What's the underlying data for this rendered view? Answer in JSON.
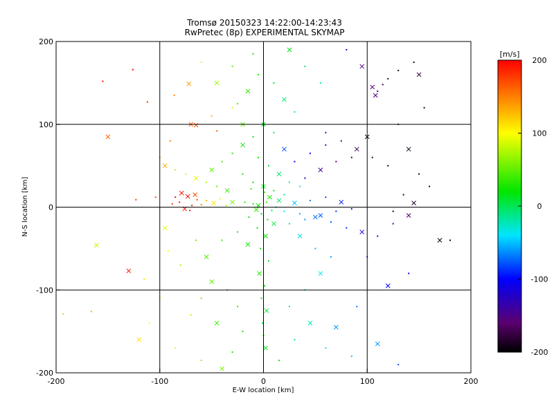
{
  "chart_data": {
    "type": "scatter",
    "title": "Tromsø 20150323 14:22:00-14:23:43",
    "subtitle": "RwPretec (8p) EXPERIMENTAL SKYMAP",
    "xlabel": "E-W location [km]",
    "ylabel": "N-S location [km]",
    "xlim": [
      -200,
      200
    ],
    "ylim": [
      -200,
      200
    ],
    "xticks": [
      -200,
      -100,
      0,
      100,
      200
    ],
    "yticks": [
      -200,
      -100,
      0,
      100,
      200
    ],
    "grid": true,
    "markers": [
      "dot",
      "x"
    ],
    "colorbar": {
      "label": "[m/s]",
      "range": [
        -200,
        200
      ],
      "ticks": [
        200,
        100,
        0,
        -100,
        -200
      ],
      "colormap": "rainbow (black-purple-blue-cyan-green-yellow-red)",
      "placement": "right"
    },
    "points": [
      [
        -73,
        13,
        200
      ],
      [
        -81,
        6,
        195
      ],
      [
        -69,
        2,
        190
      ],
      [
        -76,
        -2,
        185
      ],
      [
        -85,
        12,
        200
      ],
      [
        -64,
        9,
        175
      ],
      [
        -79,
        17,
        190
      ],
      [
        -71,
        -4,
        200
      ],
      [
        -88,
        4,
        185
      ],
      [
        -66,
        15,
        170
      ],
      [
        -60,
        3,
        150
      ],
      [
        -55,
        8,
        130
      ],
      [
        -48,
        5,
        110
      ],
      [
        -42,
        10,
        90
      ],
      [
        -36,
        2,
        70
      ],
      [
        -30,
        6,
        55
      ],
      [
        -155,
        152,
        195
      ],
      [
        -126,
        166,
        200
      ],
      [
        -130,
        -77,
        190
      ],
      [
        -166,
        -126,
        130
      ],
      [
        -193,
        -129,
        120
      ],
      [
        -161,
        -46,
        80
      ],
      [
        -123,
        9,
        180
      ],
      [
        -112,
        127,
        185
      ],
      [
        -72,
        149,
        140
      ],
      [
        -86,
        135,
        150
      ],
      [
        -104,
        12,
        170
      ],
      [
        -150,
        85,
        160
      ],
      [
        -92,
        -53,
        100
      ],
      [
        -115,
        -87,
        110
      ],
      [
        -65,
        99,
        175
      ],
      [
        -45,
        92,
        160
      ],
      [
        3,
        6,
        40
      ],
      [
        -5,
        2,
        20
      ],
      [
        8,
        -4,
        10
      ],
      [
        -2,
        -8,
        15
      ],
      [
        6,
        12,
        30
      ],
      [
        -10,
        4,
        25
      ],
      [
        12,
        0,
        5
      ],
      [
        -7,
        -3,
        35
      ],
      [
        1,
        18,
        45
      ],
      [
        -14,
        -12,
        20
      ],
      [
        15,
        8,
        -5
      ],
      [
        -18,
        6,
        30
      ],
      [
        4,
        -15,
        10
      ],
      [
        10,
        -20,
        5
      ],
      [
        -6,
        -25,
        15
      ],
      [
        -12,
        22,
        35
      ],
      [
        2,
        -35,
        20
      ],
      [
        -3,
        -50,
        15
      ],
      [
        5,
        -65,
        10
      ],
      [
        -4,
        -80,
        25
      ],
      [
        1,
        -95,
        20
      ],
      [
        -2,
        -110,
        15
      ],
      [
        3,
        -125,
        5
      ],
      [
        -1,
        -140,
        10
      ],
      [
        0,
        -155,
        20
      ],
      [
        2,
        -170,
        15
      ],
      [
        -20,
        -150,
        30
      ],
      [
        -30,
        -175,
        25
      ],
      [
        -45,
        -140,
        40
      ],
      [
        -25,
        -120,
        35
      ],
      [
        -35,
        -100,
        30
      ],
      [
        -50,
        -90,
        50
      ],
      [
        -60,
        -110,
        60
      ],
      [
        -70,
        -130,
        80
      ],
      [
        -55,
        -60,
        45
      ],
      [
        -40,
        -40,
        35
      ],
      [
        -25,
        -30,
        30
      ],
      [
        -15,
        -45,
        25
      ],
      [
        -65,
        -40,
        55
      ],
      [
        -80,
        -70,
        70
      ],
      [
        -95,
        -25,
        90
      ],
      [
        -100,
        -110,
        85
      ],
      [
        -110,
        -140,
        100
      ],
      [
        -120,
        -160,
        110
      ],
      [
        -85,
        -170,
        90
      ],
      [
        -60,
        -185,
        70
      ],
      [
        -40,
        -195,
        60
      ],
      [
        15,
        -185,
        10
      ],
      [
        30,
        -160,
        -10
      ],
      [
        45,
        -140,
        -25
      ],
      [
        25,
        -120,
        -5
      ],
      [
        40,
        -100,
        -20
      ],
      [
        55,
        -80,
        -40
      ],
      [
        65,
        -60,
        -60
      ],
      [
        50,
        -50,
        -50
      ],
      [
        35,
        -35,
        -30
      ],
      [
        25,
        -20,
        -45
      ],
      [
        40,
        -15,
        -60
      ],
      [
        55,
        -10,
        -75
      ],
      [
        70,
        -5,
        -90
      ],
      [
        85,
        -2,
        -100
      ],
      [
        30,
        5,
        -50
      ],
      [
        45,
        8,
        -70
      ],
      [
        60,
        12,
        -85
      ],
      [
        75,
        6,
        -95
      ],
      [
        20,
        -5,
        -35
      ],
      [
        35,
        -8,
        -55
      ],
      [
        50,
        -12,
        -70
      ],
      [
        65,
        -18,
        -80
      ],
      [
        80,
        -25,
        -90
      ],
      [
        95,
        -30,
        -110
      ],
      [
        110,
        -35,
        -120
      ],
      [
        125,
        -20,
        -140
      ],
      [
        140,
        -10,
        -160
      ],
      [
        60,
        90,
        -130
      ],
      [
        75,
        80,
        -150
      ],
      [
        90,
        70,
        -170
      ],
      [
        105,
        60,
        -185
      ],
      [
        120,
        50,
        -200
      ],
      [
        100,
        85,
        -195
      ],
      [
        85,
        60,
        -180
      ],
      [
        70,
        55,
        -160
      ],
      [
        55,
        45,
        -140
      ],
      [
        40,
        35,
        -120
      ],
      [
        30,
        55,
        -100
      ],
      [
        20,
        70,
        -80
      ],
      [
        45,
        65,
        -110
      ],
      [
        60,
        75,
        -130
      ],
      [
        105,
        145,
        -160
      ],
      [
        110,
        140,
        -170
      ],
      [
        115,
        148,
        -175
      ],
      [
        108,
        135,
        -150
      ],
      [
        120,
        155,
        -180
      ],
      [
        130,
        165,
        -190
      ],
      [
        95,
        170,
        -150
      ],
      [
        80,
        190,
        -120
      ],
      [
        145,
        175,
        -200
      ],
      [
        150,
        160,
        -180
      ],
      [
        155,
        120,
        -190
      ],
      [
        130,
        100,
        -175
      ],
      [
        140,
        70,
        -190
      ],
      [
        150,
        40,
        -200
      ],
      [
        160,
        25,
        -195
      ],
      [
        145,
        5,
        -185
      ],
      [
        135,
        15,
        -190
      ],
      [
        125,
        -5,
        -195
      ],
      [
        170,
        -40,
        -200
      ],
      [
        180,
        -40,
        -200
      ],
      [
        140,
        -80,
        -110
      ],
      [
        120,
        -95,
        -100
      ],
      [
        100,
        -60,
        -85
      ],
      [
        90,
        -120,
        -70
      ],
      [
        70,
        -145,
        -60
      ],
      [
        60,
        -170,
        -40
      ],
      [
        85,
        -180,
        -50
      ],
      [
        110,
        -165,
        -60
      ],
      [
        130,
        -190,
        -80
      ],
      [
        10,
        150,
        10
      ],
      [
        20,
        130,
        -5
      ],
      [
        30,
        115,
        -15
      ],
      [
        -5,
        160,
        25
      ],
      [
        -15,
        140,
        35
      ],
      [
        -25,
        125,
        45
      ],
      [
        -30,
        170,
        55
      ],
      [
        -45,
        150,
        70
      ],
      [
        -60,
        175,
        90
      ],
      [
        -10,
        185,
        30
      ],
      [
        25,
        190,
        15
      ],
      [
        40,
        170,
        0
      ],
      [
        55,
        150,
        -20
      ],
      [
        0,
        100,
        15
      ],
      [
        10,
        90,
        0
      ],
      [
        -10,
        85,
        20
      ],
      [
        -20,
        75,
        25
      ],
      [
        -30,
        65,
        30
      ],
      [
        -40,
        55,
        40
      ],
      [
        -50,
        45,
        50
      ],
      [
        -20,
        40,
        25
      ],
      [
        -10,
        30,
        20
      ],
      [
        0,
        25,
        15
      ],
      [
        10,
        20,
        5
      ],
      [
        20,
        15,
        -10
      ],
      [
        -35,
        20,
        40
      ],
      [
        -45,
        25,
        55
      ],
      [
        -55,
        30,
        70
      ],
      [
        -65,
        35,
        90
      ],
      [
        -75,
        40,
        110
      ],
      [
        -85,
        45,
        120
      ],
      [
        -95,
        50,
        130
      ],
      [
        -100,
        60,
        140
      ],
      [
        -90,
        80,
        150
      ],
      [
        -70,
        100,
        160
      ],
      [
        -50,
        110,
        130
      ],
      [
        -30,
        120,
        90
      ],
      [
        -20,
        100,
        50
      ],
      [
        -5,
        60,
        20
      ],
      [
        5,
        50,
        10
      ],
      [
        15,
        40,
        -5
      ],
      [
        25,
        30,
        -20
      ],
      [
        35,
        25,
        -35
      ]
    ]
  }
}
